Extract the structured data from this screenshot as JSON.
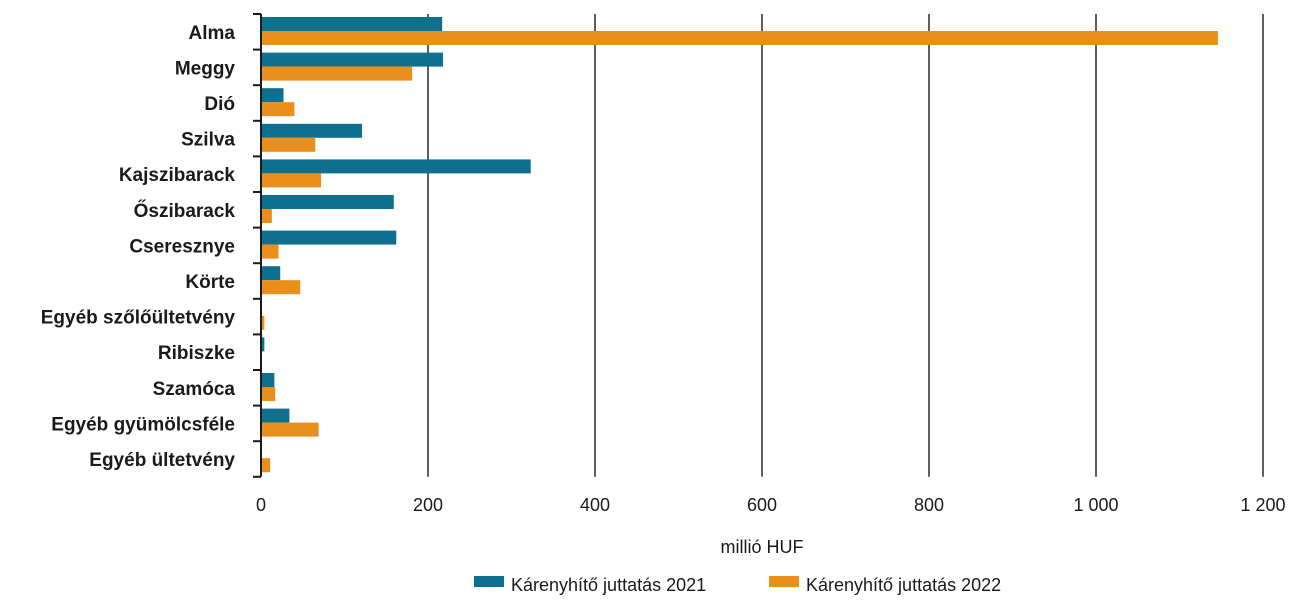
{
  "chart_data": {
    "type": "bar",
    "orientation": "horizontal",
    "categories": [
      "Alma",
      "Meggy",
      "Dió",
      "Szilva",
      "Kajszibarack",
      "Őszibarack",
      "Cseresznye",
      "Körte",
      "Egyéb szőlőültetvény",
      "Ribiszke",
      "Szamóca",
      "Egyéb gyümölcsféle",
      "Egyéb ültetvény"
    ],
    "series": [
      {
        "name": "Kárenyhítő juttatás 2021",
        "color": "#0e6f8f",
        "values": [
          217,
          218,
          27,
          121,
          323,
          159,
          162,
          23,
          0,
          4,
          16,
          34,
          0
        ]
      },
      {
        "name": "Kárenyhítő juttatás 2022",
        "color": "#eb8f1c",
        "values": [
          1146,
          181,
          40,
          65,
          72,
          13,
          21,
          47,
          4,
          0,
          17,
          69,
          11
        ]
      }
    ],
    "xlabel": "millió HUF",
    "xlim": [
      0,
      1200
    ],
    "xticks": [
      0,
      200,
      400,
      600,
      800,
      1000,
      1200
    ],
    "xtick_labels": [
      "0",
      "200",
      "400",
      "600",
      "800",
      "1 000",
      "1 200"
    ],
    "grid": true,
    "legend_position": "bottom-center"
  }
}
